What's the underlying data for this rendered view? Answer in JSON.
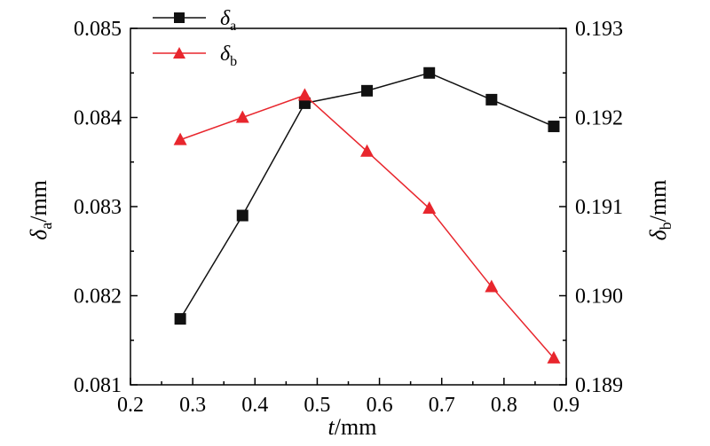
{
  "chart_data": {
    "type": "line",
    "x": [
      0.28,
      0.38,
      0.48,
      0.58,
      0.68,
      0.78,
      0.88
    ],
    "xlabel": {
      "var": "t",
      "unit": "/mm"
    },
    "xlim": [
      0.2,
      0.9
    ],
    "xticks": [
      "0.2",
      "0.3",
      "0.4",
      "0.5",
      "0.6",
      "0.7",
      "0.8",
      "0.9"
    ],
    "ylabel_left": {
      "var": "δ",
      "sub": "a",
      "unit": "/mm"
    },
    "ylim_left": [
      0.081,
      0.085
    ],
    "yticks_left": [
      "0.081",
      "0.082",
      "0.083",
      "0.084",
      "0.085"
    ],
    "ylabel_right": {
      "var": "δ",
      "sub": "b",
      "unit": "/mm"
    },
    "ylim_right": [
      0.189,
      0.193
    ],
    "yticks_right": [
      "0.189",
      "0.190",
      "0.191",
      "0.192",
      "0.193"
    ],
    "grid": false,
    "legend_position": "top-left",
    "series": [
      {
        "name": {
          "var": "δ",
          "sub": "a"
        },
        "axis": "left",
        "marker": "square",
        "color": "#111111",
        "values": [
          0.08174,
          0.0829,
          0.08416,
          0.0843,
          0.0845,
          0.0842,
          0.0839
        ]
      },
      {
        "name": {
          "var": "δ",
          "sub": "b"
        },
        "axis": "right",
        "marker": "triangle",
        "color": "#e8262d",
        "values": [
          0.19175,
          0.192,
          0.19225,
          0.19162,
          0.19098,
          0.1901,
          0.1893
        ]
      }
    ]
  }
}
